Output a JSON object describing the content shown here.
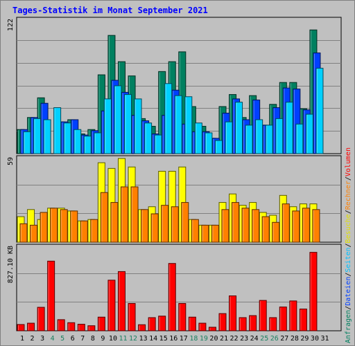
{
  "title": "Tages-Statistik im Monat September 2021",
  "chart_data": [
    {
      "type": "bar",
      "panel": "top",
      "scale_label": "122",
      "ylim": [
        0,
        122
      ],
      "categories": [
        "1",
        "2",
        "3",
        "4",
        "5",
        "6",
        "7",
        "8",
        "9",
        "10",
        "11",
        "12",
        "13",
        "14",
        "15",
        "16",
        "17",
        "18",
        "19",
        "20",
        "21",
        "22",
        "23",
        "24",
        "25",
        "26",
        "27",
        "28",
        "29",
        "30",
        "31"
      ],
      "series": [
        {
          "name": "Anfragen",
          "color": "#008060",
          "values": [
            22,
            33,
            51,
            0,
            29,
            31,
            18,
            22,
            72,
            108,
            84,
            71,
            32,
            25,
            75,
            84,
            93,
            43,
            25,
            14,
            43,
            54,
            33,
            53,
            26,
            45,
            65,
            65,
            41,
            113,
            0
          ]
        },
        {
          "name": "Dateien",
          "color": "#0040ff",
          "values": [
            22,
            33,
            46,
            0,
            29,
            31,
            17,
            21,
            39,
            67,
            56,
            35,
            30,
            18,
            35,
            58,
            27,
            20,
            20,
            14,
            37,
            50,
            31,
            49,
            26,
            42,
            60,
            59,
            40,
            92,
            0
          ]
        },
        {
          "name": "Seiten",
          "color": "#00d0ff",
          "values": [
            20,
            32,
            31,
            42,
            28,
            22,
            16,
            19,
            50,
            62,
            54,
            50,
            28,
            17,
            64,
            53,
            52,
            28,
            19,
            12,
            29,
            47,
            26,
            31,
            26,
            32,
            47,
            27,
            36,
            78,
            0
          ]
        }
      ]
    },
    {
      "type": "bar",
      "panel": "middle",
      "scale_label": "59",
      "ylim": [
        0,
        59
      ],
      "categories": [
        "1",
        "2",
        "3",
        "4",
        "5",
        "6",
        "7",
        "8",
        "9",
        "10",
        "11",
        "12",
        "13",
        "14",
        "15",
        "16",
        "17",
        "18",
        "19",
        "20",
        "21",
        "22",
        "23",
        "24",
        "25",
        "26",
        "27",
        "28",
        "29",
        "30",
        "31"
      ],
      "series": [
        {
          "name": "Besuche",
          "color": "#ffff00",
          "values": [
            18,
            23,
            16,
            24,
            24,
            22,
            15,
            16,
            56,
            52,
            59,
            53,
            23,
            25,
            50,
            50,
            53,
            16,
            12,
            12,
            28,
            34,
            26,
            28,
            21,
            19,
            33,
            25,
            27,
            27,
            0
          ]
        },
        {
          "name": "Rechner",
          "color": "#ff8000",
          "values": [
            13,
            12,
            21,
            24,
            23,
            22,
            15,
            16,
            35,
            28,
            39,
            39,
            23,
            20,
            26,
            25,
            28,
            16,
            12,
            12,
            23,
            28,
            24,
            23,
            18,
            14,
            27,
            22,
            24,
            23,
            0
          ]
        }
      ]
    },
    {
      "type": "bar",
      "panel": "bottom",
      "scale_label": "827.10 KB",
      "ylim": [
        0,
        827.1
      ],
      "categories": [
        "1",
        "2",
        "3",
        "4",
        "5",
        "6",
        "7",
        "8",
        "9",
        "10",
        "11",
        "12",
        "13",
        "14",
        "15",
        "16",
        "17",
        "18",
        "19",
        "20",
        "21",
        "22",
        "23",
        "24",
        "25",
        "26",
        "27",
        "28",
        "29",
        "30",
        "31"
      ],
      "series": [
        {
          "name": "Volumen",
          "color": "#ff0000",
          "values": [
            62,
            75,
            232,
            688,
            110,
            80,
            65,
            50,
            135,
            500,
            585,
            270,
            60,
            130,
            145,
            665,
            270,
            135,
            75,
            35,
            170,
            345,
            130,
            150,
            300,
            130,
            235,
            295,
            215,
            775,
            0
          ]
        }
      ]
    }
  ],
  "x_labels": [
    {
      "text": "1",
      "color": "#000000"
    },
    {
      "text": "2",
      "color": "#000000"
    },
    {
      "text": "3",
      "color": "#000000"
    },
    {
      "text": "4",
      "color": "#1a8060"
    },
    {
      "text": "5",
      "color": "#1a8060"
    },
    {
      "text": "6",
      "color": "#000000"
    },
    {
      "text": "7",
      "color": "#000000"
    },
    {
      "text": "8",
      "color": "#000000"
    },
    {
      "text": "9",
      "color": "#000000"
    },
    {
      "text": "10",
      "color": "#000000"
    },
    {
      "text": "11",
      "color": "#1a8060"
    },
    {
      "text": "12",
      "color": "#1a8060"
    },
    {
      "text": "13",
      "color": "#000000"
    },
    {
      "text": "14",
      "color": "#000000"
    },
    {
      "text": "15",
      "color": "#000000"
    },
    {
      "text": "16",
      "color": "#000000"
    },
    {
      "text": "17",
      "color": "#000000"
    },
    {
      "text": "18",
      "color": "#1a8060"
    },
    {
      "text": "19",
      "color": "#1a8060"
    },
    {
      "text": "20",
      "color": "#000000"
    },
    {
      "text": "21",
      "color": "#000000"
    },
    {
      "text": "22",
      "color": "#000000"
    },
    {
      "text": "23",
      "color": "#000000"
    },
    {
      "text": "24",
      "color": "#000000"
    },
    {
      "text": "25",
      "color": "#1a8060"
    },
    {
      "text": "26",
      "color": "#1a8060"
    },
    {
      "text": "27",
      "color": "#000000"
    },
    {
      "text": "28",
      "color": "#000000"
    },
    {
      "text": "29",
      "color": "#000000"
    },
    {
      "text": "30",
      "color": "#000000"
    },
    {
      "text": "31",
      "color": "#000000"
    }
  ],
  "legend": [
    {
      "text": "Anfragen",
      "color": "#008060"
    },
    {
      "text": "/",
      "color": "#000000"
    },
    {
      "text": "Dateien",
      "color": "#0040ff"
    },
    {
      "text": "/",
      "color": "#000000"
    },
    {
      "text": "Seiten",
      "color": "#00c0ff"
    },
    {
      "text": "/",
      "color": "#000000"
    },
    {
      "text": "Besuche",
      "color": "#e0e000"
    },
    {
      "text": "/",
      "color": "#000000"
    },
    {
      "text": "Rechner",
      "color": "#ff8000"
    },
    {
      "text": "/",
      "color": "#000000"
    },
    {
      "text": "Volumen",
      "color": "#ff0000"
    }
  ]
}
